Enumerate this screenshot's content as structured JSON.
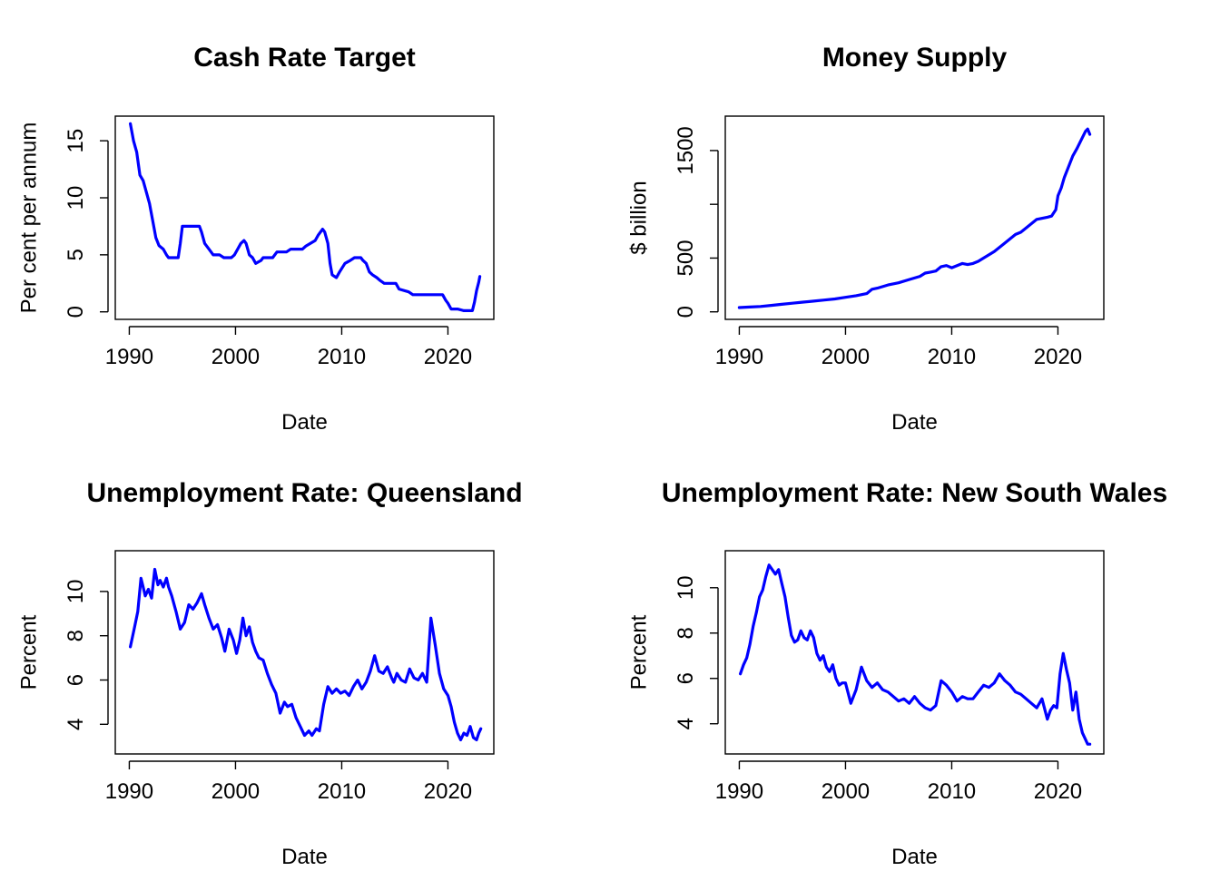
{
  "colors": {
    "series": "#0000ff",
    "axis": "#000000",
    "background": "#ffffff"
  },
  "chart_data": [
    {
      "type": "line",
      "title": "Cash Rate Target",
      "xlabel": "Date",
      "ylabel": "Per cent per annum",
      "xlim": [
        1990,
        2023
      ],
      "ylim": [
        0,
        16.5
      ],
      "xticks": [
        "1990",
        "2000",
        "2010",
        "2020"
      ],
      "yticks": [
        "0",
        "5",
        "10",
        "15"
      ],
      "grid": false,
      "series": [
        {
          "x": [
            1990.1,
            1990.4,
            1990.7,
            1991.0,
            1991.3,
            1991.6,
            1991.9,
            1992.2,
            1992.5,
            1992.8,
            1993.2,
            1993.5,
            1993.7,
            1994.6,
            1994.8,
            1995.0,
            1996.6,
            1996.8,
            1997.1,
            1997.5,
            1997.9,
            1998.5,
            1998.9,
            1999.6,
            1999.9,
            2000.2,
            2000.5,
            2000.8,
            2001.0,
            2001.3,
            2001.6,
            2001.9,
            2002.4,
            2002.6,
            2003.5,
            2003.9,
            2004.8,
            2005.2,
            2006.3,
            2006.6,
            2007.5,
            2007.8,
            2008.2,
            2008.4,
            2008.7,
            2008.9,
            2009.1,
            2009.5,
            2009.8,
            2010.3,
            2010.8,
            2011.2,
            2011.8,
            2012.0,
            2012.3,
            2012.6,
            2012.9,
            2013.3,
            2013.6,
            2014.0,
            2015.1,
            2015.4,
            2016.3,
            2016.7,
            2019.5,
            2019.8,
            2020.0,
            2020.3,
            2020.9,
            2021.5,
            2022.3,
            2022.5,
            2022.7,
            2022.9,
            2023.0
          ],
          "y": [
            16.5,
            15.0,
            14.0,
            12.0,
            11.5,
            10.5,
            9.5,
            8.0,
            6.5,
            5.8,
            5.5,
            5.0,
            4.75,
            4.75,
            6.0,
            7.5,
            7.5,
            7.0,
            6.0,
            5.5,
            5.0,
            5.0,
            4.75,
            4.75,
            5.0,
            5.5,
            6.0,
            6.25,
            6.0,
            5.0,
            4.75,
            4.25,
            4.5,
            4.75,
            4.75,
            5.25,
            5.25,
            5.5,
            5.5,
            5.75,
            6.25,
            6.75,
            7.25,
            7.0,
            6.0,
            4.25,
            3.25,
            3.0,
            3.5,
            4.25,
            4.5,
            4.75,
            4.75,
            4.5,
            4.25,
            3.5,
            3.25,
            3.0,
            2.75,
            2.5,
            2.5,
            2.0,
            1.75,
            1.5,
            1.5,
            1.0,
            0.75,
            0.25,
            0.25,
            0.1,
            0.1,
            0.85,
            1.85,
            2.6,
            3.1
          ]
        }
      ]
    },
    {
      "type": "line",
      "title": "Money Supply",
      "xlabel": "Date",
      "ylabel": "$ billion",
      "xlim": [
        1990,
        2023
      ],
      "ylim": [
        0,
        1750
      ],
      "xticks": [
        "1990",
        "2000",
        "2010",
        "2020"
      ],
      "yticks": [
        "0",
        "500",
        "1500"
      ],
      "grid": false,
      "series": [
        {
          "x": [
            1990.0,
            1991.0,
            1992.0,
            1993.0,
            1994.0,
            1995.0,
            1996.0,
            1997.0,
            1998.0,
            1999.0,
            2000.0,
            2001.0,
            2002.0,
            2002.5,
            2003.0,
            2004.0,
            2005.0,
            2006.0,
            2007.0,
            2007.5,
            2008.0,
            2008.5,
            2009.0,
            2009.5,
            2010.0,
            2011.0,
            2011.5,
            2012.0,
            2012.5,
            2013.0,
            2014.0,
            2015.0,
            2016.0,
            2016.5,
            2017.0,
            2018.0,
            2019.0,
            2019.4,
            2019.8,
            2020.0,
            2020.3,
            2020.6,
            2021.0,
            2021.4,
            2021.8,
            2022.2,
            2022.6,
            2022.8,
            2023.0
          ],
          "y": [
            40,
            45,
            50,
            60,
            70,
            80,
            90,
            100,
            110,
            120,
            135,
            150,
            170,
            210,
            220,
            250,
            270,
            300,
            330,
            360,
            370,
            380,
            420,
            430,
            410,
            450,
            440,
            450,
            470,
            500,
            560,
            640,
            720,
            740,
            780,
            860,
            880,
            890,
            950,
            1080,
            1150,
            1250,
            1350,
            1450,
            1520,
            1600,
            1680,
            1700,
            1650
          ]
        }
      ]
    },
    {
      "type": "line",
      "title": "Unemployment Rate: Queensland",
      "xlabel": "Date",
      "ylabel": "Percent",
      "xlim": [
        1990,
        2023
      ],
      "ylim": [
        3.0,
        11.5
      ],
      "xticks": [
        "1990",
        "2000",
        "2010",
        "2020"
      ],
      "yticks": [
        "4",
        "6",
        "8",
        "10"
      ],
      "grid": false,
      "series": [
        {
          "x": [
            1990.1,
            1990.5,
            1990.8,
            1991.1,
            1991.3,
            1991.5,
            1991.8,
            1992.1,
            1992.4,
            1992.7,
            1992.9,
            1993.2,
            1993.5,
            1993.7,
            1994.0,
            1994.4,
            1994.8,
            1995.2,
            1995.6,
            1996.0,
            1996.4,
            1996.8,
            1997.1,
            1997.5,
            1997.9,
            1998.3,
            1998.7,
            1999.0,
            1999.4,
            1999.8,
            2000.1,
            2000.4,
            2000.7,
            2001.0,
            2001.3,
            2001.6,
            2001.9,
            2002.2,
            2002.6,
            2003.0,
            2003.4,
            2003.8,
            2004.2,
            2004.6,
            2004.9,
            2005.3,
            2005.7,
            2006.1,
            2006.5,
            2006.9,
            2007.2,
            2007.6,
            2007.9,
            2008.3,
            2008.7,
            2009.1,
            2009.5,
            2009.9,
            2010.3,
            2010.7,
            2011.1,
            2011.5,
            2011.9,
            2012.3,
            2012.7,
            2013.1,
            2013.5,
            2013.9,
            2014.3,
            2014.7,
            2014.9,
            2015.2,
            2015.6,
            2016.0,
            2016.4,
            2016.8,
            2017.2,
            2017.6,
            2018.0,
            2018.4,
            2018.8,
            2019.2,
            2019.6,
            2020.0,
            2020.3,
            2020.6,
            2020.9,
            2021.2,
            2021.5,
            2021.8,
            2022.1,
            2022.4,
            2022.7,
            2022.9,
            2023.1
          ],
          "y": [
            7.5,
            8.4,
            9.1,
            10.6,
            10.2,
            9.8,
            10.1,
            9.7,
            11.0,
            10.3,
            10.5,
            10.2,
            10.6,
            10.2,
            9.8,
            9.1,
            8.3,
            8.6,
            9.4,
            9.2,
            9.5,
            9.9,
            9.4,
            8.8,
            8.3,
            8.5,
            7.9,
            7.3,
            8.3,
            7.8,
            7.2,
            7.8,
            8.8,
            8.0,
            8.4,
            7.7,
            7.3,
            7.0,
            6.9,
            6.3,
            5.8,
            5.4,
            4.5,
            5.0,
            4.8,
            4.9,
            4.3,
            3.9,
            3.5,
            3.7,
            3.5,
            3.8,
            3.7,
            4.9,
            5.7,
            5.4,
            5.6,
            5.4,
            5.5,
            5.3,
            5.7,
            6.0,
            5.6,
            5.9,
            6.4,
            7.1,
            6.4,
            6.3,
            6.6,
            6.1,
            5.9,
            6.3,
            6.0,
            5.9,
            6.5,
            6.1,
            6.0,
            6.3,
            5.9,
            8.8,
            7.6,
            6.3,
            5.6,
            5.3,
            4.8,
            4.1,
            3.6,
            3.3,
            3.6,
            3.5,
            3.9,
            3.4,
            3.3,
            3.6,
            3.8
          ]
        }
      ]
    },
    {
      "type": "line",
      "title": "Unemployment Rate: New South Wales",
      "xlabel": "Date",
      "ylabel": "Percent",
      "xlim": [
        1990,
        2023
      ],
      "ylim": [
        3.0,
        11.3
      ],
      "xticks": [
        "1990",
        "2000",
        "2010",
        "2020"
      ],
      "yticks": [
        "4",
        "6",
        "8",
        "10"
      ],
      "grid": false,
      "series": [
        {
          "x": [
            1990.1,
            1990.4,
            1990.7,
            1991.0,
            1991.3,
            1991.6,
            1991.9,
            1992.2,
            1992.5,
            1992.8,
            1993.1,
            1993.4,
            1993.7,
            1994.0,
            1994.3,
            1994.6,
            1994.9,
            1995.2,
            1995.5,
            1995.8,
            1996.1,
            1996.4,
            1996.7,
            1997.0,
            1997.3,
            1997.6,
            1997.9,
            1998.2,
            1998.5,
            1998.8,
            1999.1,
            1999.4,
            1999.7,
            2000.0,
            2000.5,
            2001.0,
            2001.5,
            2002.0,
            2002.5,
            2003.0,
            2003.5,
            2004.0,
            2004.5,
            2005.0,
            2005.5,
            2006.0,
            2006.5,
            2007.0,
            2007.5,
            2008.0,
            2008.5,
            2009.0,
            2009.5,
            2010.0,
            2010.5,
            2011.0,
            2011.5,
            2012.0,
            2012.5,
            2013.0,
            2013.5,
            2014.0,
            2014.5,
            2015.0,
            2015.5,
            2016.0,
            2016.5,
            2017.0,
            2017.5,
            2018.0,
            2018.5,
            2019.0,
            2019.3,
            2019.6,
            2019.9,
            2020.2,
            2020.5,
            2020.8,
            2021.1,
            2021.4,
            2021.7,
            2022.0,
            2022.3,
            2022.6,
            2022.8,
            2023.0
          ],
          "y": [
            6.2,
            6.6,
            6.9,
            7.5,
            8.3,
            8.9,
            9.6,
            9.9,
            10.5,
            11.0,
            10.8,
            10.6,
            10.8,
            10.2,
            9.6,
            8.7,
            7.9,
            7.6,
            7.7,
            8.1,
            7.8,
            7.7,
            8.1,
            7.8,
            7.1,
            6.8,
            7.0,
            6.5,
            6.3,
            6.6,
            6.0,
            5.7,
            5.8,
            5.8,
            4.9,
            5.5,
            6.5,
            5.9,
            5.6,
            5.8,
            5.5,
            5.4,
            5.2,
            5.0,
            5.1,
            4.9,
            5.2,
            4.9,
            4.7,
            4.6,
            4.8,
            5.9,
            5.7,
            5.4,
            5.0,
            5.2,
            5.1,
            5.1,
            5.4,
            5.7,
            5.6,
            5.8,
            6.2,
            5.9,
            5.7,
            5.4,
            5.3,
            5.1,
            4.9,
            4.7,
            5.1,
            4.2,
            4.6,
            4.8,
            4.7,
            6.2,
            7.1,
            6.4,
            5.8,
            4.6,
            5.4,
            4.2,
            3.6,
            3.3,
            3.1,
            3.1
          ]
        }
      ]
    }
  ]
}
